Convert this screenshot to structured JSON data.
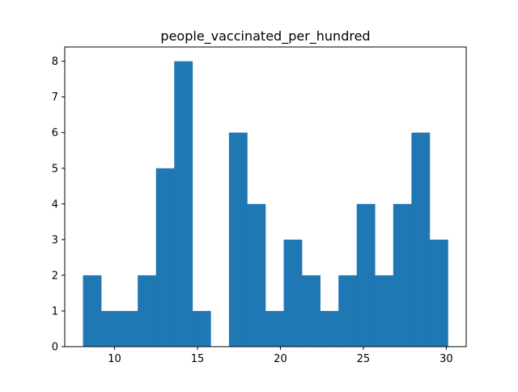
{
  "chart_data": {
    "type": "bar",
    "title": "people_vaccinated_per_hundred",
    "xlabel": "",
    "ylabel": "",
    "bin_edges": [
      8.1,
      9.2,
      10.3,
      11.4,
      12.5,
      13.6,
      14.7,
      15.8,
      16.9,
      18.0,
      19.1,
      20.2,
      21.3,
      22.4,
      23.5,
      24.6,
      25.7,
      26.8,
      27.9,
      29.0,
      30.1
    ],
    "values": [
      2,
      1,
      1,
      2,
      5,
      8,
      1,
      0,
      6,
      4,
      1,
      3,
      2,
      1,
      2,
      4,
      2,
      4,
      6,
      3
    ],
    "xlim": [
      7.0,
      31.2
    ],
    "ylim": [
      0,
      8.4
    ],
    "xticks": [
      10,
      15,
      20,
      25,
      30
    ],
    "yticks": [
      0,
      1,
      2,
      3,
      4,
      5,
      6,
      7,
      8
    ],
    "bar_color": "#1f77b4",
    "grid": false
  }
}
